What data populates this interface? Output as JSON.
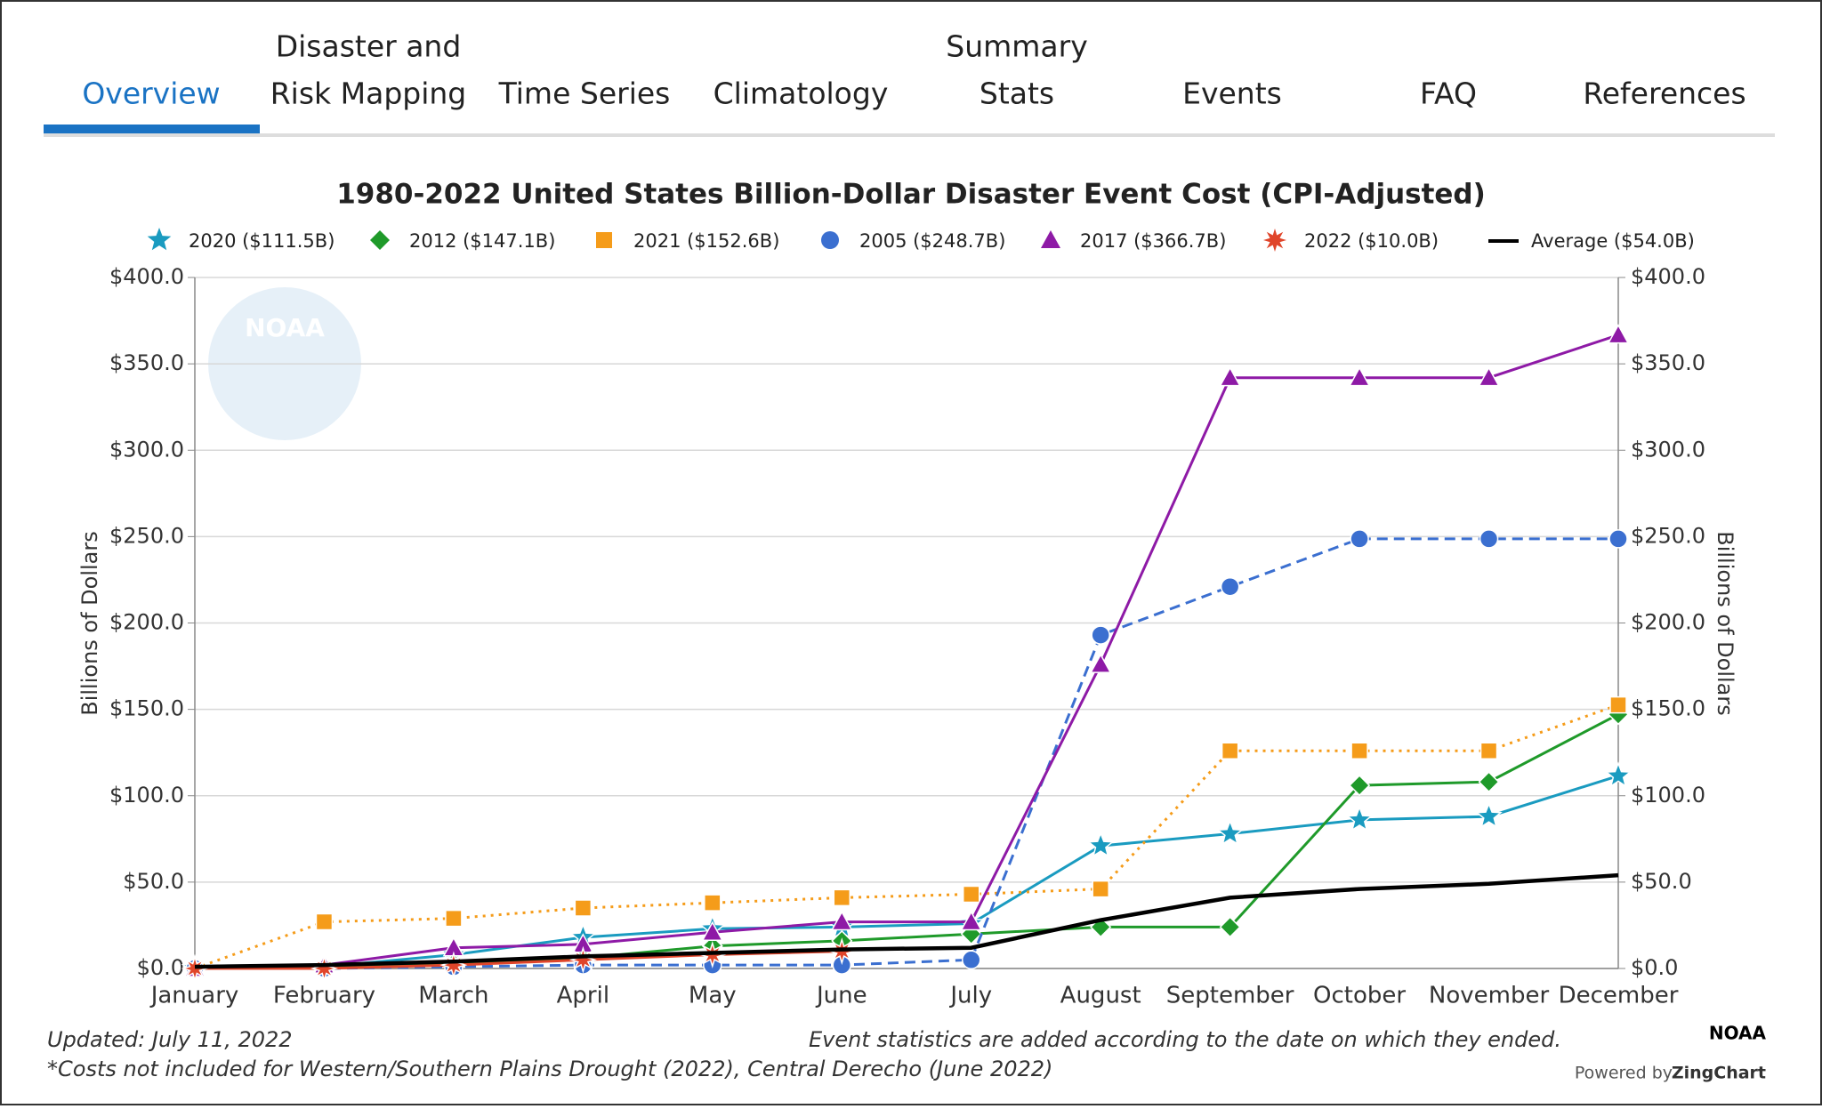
{
  "nav": {
    "tabs": [
      [
        "Overview"
      ],
      [
        "Disaster and",
        "Risk Mapping"
      ],
      [
        "Time Series"
      ],
      [
        "Climatology"
      ],
      [
        "Summary",
        "Stats"
      ],
      [
        "Events"
      ],
      [
        "FAQ"
      ],
      [
        "References"
      ]
    ],
    "active": 0
  },
  "chart_data": {
    "type": "line",
    "title": "1980-2022 United States Billion-Dollar Disaster Event Cost (CPI-Adjusted)",
    "watermark": "NOAA",
    "y_label": "Billions of Dollars",
    "y2_label": "Billions of Dollars",
    "categories": [
      "January",
      "February",
      "March",
      "April",
      "May",
      "June",
      "July",
      "August",
      "September",
      "October",
      "November",
      "December"
    ],
    "ylim": [
      0,
      400
    ],
    "yticks": [
      {
        "value": 0,
        "label": "$0.0"
      },
      {
        "value": 50,
        "label": "$50.0"
      },
      {
        "value": 100,
        "label": "$100.0"
      },
      {
        "value": 150,
        "label": "$150.0"
      },
      {
        "value": 200,
        "label": "$200.0"
      },
      {
        "value": 250,
        "label": "$250.0"
      },
      {
        "value": 300,
        "label": "$300.0"
      },
      {
        "value": 350,
        "label": "$350.0"
      },
      {
        "value": 400,
        "label": "$400.0"
      }
    ],
    "y2lim": [
      0,
      400
    ],
    "y2ticks": [
      {
        "value": 0,
        "label": "$0.0"
      },
      {
        "value": 50,
        "label": "$50.0"
      },
      {
        "value": 100,
        "label": "$100.0"
      },
      {
        "value": 150,
        "label": "$150.0"
      },
      {
        "value": 200,
        "label": "$200.0"
      },
      {
        "value": 250,
        "label": "$250.0"
      },
      {
        "value": 300,
        "label": "$300.0"
      },
      {
        "value": 350,
        "label": "$350.0"
      },
      {
        "value": 400,
        "label": "$400.0"
      }
    ],
    "grid": true,
    "series": [
      {
        "name": "2020 ($111.5B)",
        "color": "#1a9bc0",
        "marker": "star",
        "line_style": "solid",
        "values": [
          0,
          1,
          8,
          18,
          23,
          24,
          26,
          71,
          78,
          86,
          88,
          111.5
        ]
      },
      {
        "name": "2012 ($147.1B)",
        "color": "#1f9a2a",
        "marker": "diamond",
        "line_style": "solid",
        "values": [
          0,
          1,
          3,
          6,
          13,
          16,
          20,
          24,
          24,
          106,
          108,
          147.1
        ]
      },
      {
        "name": "2021 ($152.6B)",
        "color": "#f59c1a",
        "marker": "square",
        "line_style": "dotted",
        "values": [
          0,
          27,
          29,
          35,
          38,
          41,
          43,
          46,
          126,
          126,
          126,
          152.6
        ]
      },
      {
        "name": "2005 ($248.7B)",
        "color": "#3b6fd0",
        "marker": "circle",
        "line_style": "dashed",
        "values": [
          0,
          0,
          1,
          2,
          2,
          2,
          5,
          193,
          221,
          248.7,
          248.7,
          248.7
        ]
      },
      {
        "name": "2017 ($366.7B)",
        "color": "#8e1aa6",
        "marker": "triangle",
        "line_style": "solid",
        "values": [
          0,
          2,
          12,
          14,
          21,
          27,
          27,
          176,
          342,
          342,
          342,
          366.7
        ]
      },
      {
        "name": "2022 ($10.0B)",
        "color": "#e0452a",
        "marker": "burst",
        "line_style": "solid",
        "values": [
          0,
          0,
          2,
          5,
          8,
          10,
          null,
          null,
          null,
          null,
          null,
          null
        ]
      },
      {
        "name": "Average ($54.0B)",
        "color": "#000000",
        "marker": "none",
        "line_style": "thick",
        "values": [
          1,
          2,
          4,
          7,
          9,
          11,
          12,
          28,
          41,
          46,
          49,
          54
        ]
      }
    ]
  },
  "footer": {
    "updated": "Updated: July 11, 2022",
    "note": "Event statistics are added according to the date on which they ended.",
    "costs": "*Costs not included for Western/Southern Plains Drought (2022), Central Derecho (June 2022)",
    "brand": "NOAA",
    "powered": "Powered by",
    "powered_brand": "ZingChart"
  }
}
